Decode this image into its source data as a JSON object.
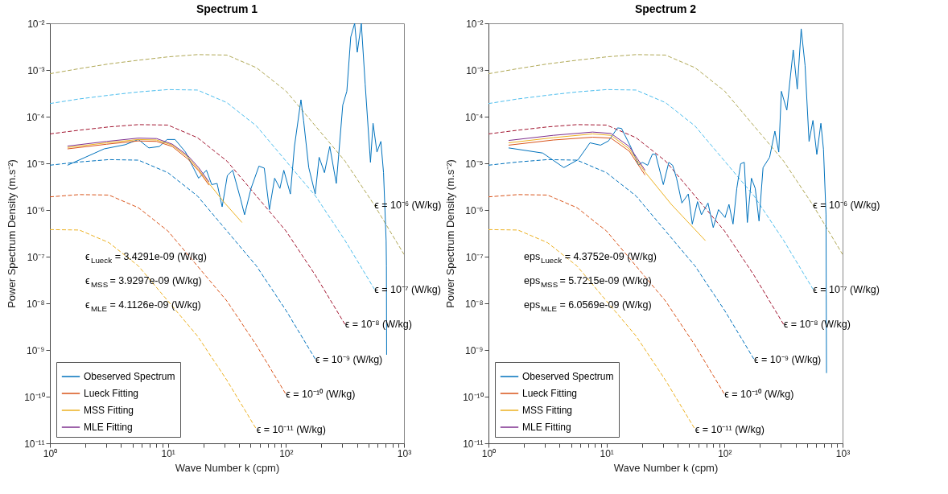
{
  "chart_data": [
    {
      "type": "line",
      "title": "Spectrum 1",
      "xlabel": "Wave Number k (cpm)",
      "ylabel": "Power Spectrum Density (m.s⁻²)",
      "xlim": [
        1,
        1000
      ],
      "ylim": [
        1e-11,
        0.01
      ],
      "log": "xy",
      "grid": false,
      "legend": "bottom left",
      "marker": "none",
      "xticks": [
        {
          "value": 1,
          "label": "10⁰"
        },
        {
          "value": 2,
          "label": null
        },
        {
          "value": 3,
          "label": null
        },
        {
          "value": 4,
          "label": null
        },
        {
          "value": 5,
          "label": null
        },
        {
          "value": 6,
          "label": null
        },
        {
          "value": 7,
          "label": null
        },
        {
          "value": 8,
          "label": null
        },
        {
          "value": 9,
          "label": null
        },
        {
          "value": 10,
          "label": "10¹"
        },
        {
          "value": 20,
          "label": null
        },
        {
          "value": 30,
          "label": null
        },
        {
          "value": 40,
          "label": null
        },
        {
          "value": 50,
          "label": null
        },
        {
          "value": 60,
          "label": null
        },
        {
          "value": 70,
          "label": null
        },
        {
          "value": 80,
          "label": null
        },
        {
          "value": 90,
          "label": null
        },
        {
          "value": 100,
          "label": "10²"
        },
        {
          "value": 200,
          "label": null
        },
        {
          "value": 300,
          "label": null
        },
        {
          "value": 400,
          "label": null
        },
        {
          "value": 500,
          "label": null
        },
        {
          "value": 600,
          "label": null
        },
        {
          "value": 700,
          "label": null
        },
        {
          "value": 800,
          "label": null
        },
        {
          "value": 900,
          "label": null
        },
        {
          "value": 1000,
          "label": "10³"
        }
      ],
      "yticks": [
        {
          "value": 1e-11,
          "label": "10⁻¹¹"
        },
        {
          "value": 1e-10,
          "label": "10⁻¹⁰"
        },
        {
          "value": 1e-09,
          "label": "10⁻⁹"
        },
        {
          "value": 1e-08,
          "label": "10⁻⁸"
        },
        {
          "value": 1e-07,
          "label": "10⁻⁷"
        },
        {
          "value": 1e-06,
          "label": "10⁻⁶"
        },
        {
          "value": 1e-05,
          "label": "10⁻⁵"
        },
        {
          "value": 0.0001,
          "label": "10⁻⁴"
        },
        {
          "value": 0.001,
          "label": "10⁻³"
        },
        {
          "value": 0.01,
          "label": "10⁻²"
        }
      ],
      "series": [
        {
          "color": "#b0a855",
          "line_style": "dashed",
          "x": [
            1,
            1.778,
            3.162,
            5.623,
            10,
            17.78,
            31.62,
            56.23,
            100,
            177.8,
            316.2,
            562.3,
            1000
          ],
          "values": [
            0.000832,
            0.00107,
            0.00135,
            0.00162,
            0.00191,
            0.00214,
            0.00209,
            0.00112,
            0.000355,
            6.31e-05,
            1.12e-05,
            1.26e-06,
            1.12e-07
          ]
        },
        {
          "color": "#4dbeee",
          "line_style": "dashed",
          "x": [
            1,
            1.778,
            3.162,
            5.623,
            10,
            17.78,
            31.62,
            56.23,
            100,
            177.8,
            316.2,
            562.3
          ],
          "values": [
            0.000191,
            0.00024,
            0.000288,
            0.000339,
            0.00038,
            0.000372,
            0.0002,
            6.31e-05,
            1.12e-05,
            2e-06,
            2.24e-07,
            2e-08
          ]
        },
        {
          "color": "#a2142f",
          "line_style": "dashed",
          "x": [
            1,
            1.778,
            3.162,
            5.623,
            10,
            17.78,
            31.62,
            56.23,
            100,
            177.8,
            316.2
          ],
          "values": [
            4.27e-05,
            5.13e-05,
            6.03e-05,
            6.76e-05,
            6.61e-05,
            3.55e-05,
            1.12e-05,
            2e-06,
            3.55e-07,
            3.98e-08,
            3.55e-09
          ]
        },
        {
          "color": "#0072bd",
          "line_style": "dashed",
          "x": [
            1,
            1.778,
            3.162,
            5.623,
            10,
            17.78,
            31.62,
            56.23,
            100,
            177.8
          ],
          "values": [
            9.12e-06,
            1.07e-05,
            1.2e-05,
            1.17e-05,
            6.31e-06,
            2e-06,
            3.55e-07,
            6.31e-08,
            7.08e-09,
            6.31e-10
          ]
        },
        {
          "color": "#d95319",
          "line_style": "dashed",
          "x": [
            1,
            1.778,
            3.162,
            5.623,
            10,
            17.78,
            31.62,
            56.23,
            100
          ],
          "values": [
            1.91e-06,
            2.14e-06,
            2.09e-06,
            1.12e-06,
            3.55e-07,
            6.31e-08,
            1.12e-08,
            1.26e-09,
            1.12e-10
          ]
        },
        {
          "color": "#edb120",
          "line_style": "dashed",
          "x": [
            1,
            1.778,
            3.162,
            5.623,
            10,
            17.78,
            31.62,
            56.23
          ],
          "values": [
            3.8e-07,
            3.72e-07,
            2e-07,
            6.31e-08,
            1.12e-08,
            2e-09,
            2.24e-10,
            2e-11
          ]
        },
        {
          "name": "Obeserved Spectrum",
          "color": "#0072bd",
          "line_style": "solid",
          "x": [
            1.41,
            2.88,
            4.35,
            5.61,
            6.89,
            8.45,
            9.84,
            11.5,
            14.1,
            16.4,
            18.2,
            21.2,
            23.5,
            26.1,
            28.8,
            31.9,
            35.4,
            41.3,
            44.6,
            50.6,
            59.0,
            65.5,
            72.4,
            80.2,
            88.9,
            95.9,
            109,
            118,
            134,
            141,
            156,
            177,
            191,
            212,
            235,
            267,
            281,
            303,
            328,
            354,
            382,
            402,
            435,
            469,
            520,
            547,
            590,
            637,
            671,
            706,
            710,
            713
          ],
          "values": [
            9.1e-06,
            2.04e-05,
            2.51e-05,
            3.24e-05,
            2.14e-05,
            2.29e-05,
            3.24e-05,
            3.24e-05,
            1.74e-05,
            8.1e-06,
            4.8e-06,
            7.1e-06,
            3.5e-06,
            3.7e-06,
            1.17e-06,
            5.5e-06,
            7.1e-06,
            1.7e-06,
            7.9e-07,
            2.9e-06,
            8.7e-06,
            7.9e-06,
            1.02e-06,
            4.8e-06,
            2.9e-06,
            7.1e-06,
            2.2e-06,
            2.3e-05,
            0.00023,
            8.3e-05,
            8.1e-06,
            2.2e-06,
            1.35e-05,
            6.3e-06,
            2.3e-05,
            3.7e-06,
            1.74e-05,
            0.000178,
            0.00035,
            0.0051,
            0.01,
            0.0024,
            0.01,
            0.0005,
            1.05e-05,
            7.2e-05,
            1.74e-05,
            2.95e-05,
            6.3e-06,
            2.2e-07,
            6.3e-08,
            7.9e-10
          ]
        },
        {
          "name": "Lueck Fitting",
          "color": "#d95319",
          "line_style": "solid",
          "x": [
            1.41,
            3.03,
            5.61,
            8.02,
            10.9,
            14.8,
            18.2,
            22.3
          ],
          "values": [
            2.04e-05,
            2.57e-05,
            3.02e-05,
            2.95e-05,
            2.29e-05,
            1.23e-05,
            6.9e-06,
            3.4e-06
          ]
        },
        {
          "name": "MSS Fitting",
          "color": "#edb120",
          "line_style": "solid",
          "x": [
            1.41,
            3.03,
            5.61,
            8.02,
            10.9,
            14.8,
            18.2,
            22.3,
            30.3,
            42.4
          ],
          "values": [
            2.19e-05,
            2.75e-05,
            3.24e-05,
            3.16e-05,
            2.45e-05,
            1.35e-05,
            7.4e-06,
            3.7e-06,
            1.41e-06,
            5.4e-07
          ]
        },
        {
          "name": "MLE Fitting",
          "color": "#7e2f8e",
          "line_style": "solid",
          "x": [
            1.41,
            3.03,
            5.61,
            8.02,
            10.9,
            14.8,
            18.2,
            22.3
          ],
          "values": [
            2.34e-05,
            2.95e-05,
            3.47e-05,
            3.39e-05,
            2.57e-05,
            1.45e-05,
            8.1e-06,
            4e-06
          ]
        }
      ],
      "annotations": [
        {
          "text": "ϵ = 10⁻⁶ (W/kg)",
          "x": 562.3,
          "y": 1.26e-06
        },
        {
          "text": "ϵ = 10⁻⁷ (W/kg)",
          "x": 562.3,
          "y": 2e-08
        },
        {
          "text": "ϵ = 10⁻⁸ (W/kg)",
          "x": 316.2,
          "y": 3.55e-09
        },
        {
          "text": "ϵ = 10⁻⁹ (W/kg)",
          "x": 177.8,
          "y": 6.31e-10
        },
        {
          "text": "ϵ = 10⁻¹⁰ (W/kg)",
          "x": 100,
          "y": 1.12e-10
        },
        {
          "text": "ϵ = 10⁻¹¹ (W/kg)",
          "x": 56.23,
          "y": 2e-11
        },
        "ϵ$_{Lueck}$ = 3.4291e-09 (W/kg)",
        "ϵ$_{MSS}$ = 3.9297e-09 (W/kg)",
        "ϵ$_{MLE}$ = 4.1126e-09 (W/kg)"
      ]
    },
    {
      "type": "line",
      "title": "Spectrum 2",
      "xlabel": "Wave Number k (cpm)",
      "ylabel": "Power Spectrum Density (m.s⁻²)",
      "xlim": [
        1,
        1000
      ],
      "ylim": [
        1e-11,
        0.01
      ],
      "log": "xy",
      "grid": false,
      "legend": "bottom left",
      "marker": "none",
      "xticks": [
        {
          "value": 1,
          "label": "10⁰"
        },
        {
          "value": 2,
          "label": null
        },
        {
          "value": 3,
          "label": null
        },
        {
          "value": 4,
          "label": null
        },
        {
          "value": 5,
          "label": null
        },
        {
          "value": 6,
          "label": null
        },
        {
          "value": 7,
          "label": null
        },
        {
          "value": 8,
          "label": null
        },
        {
          "value": 9,
          "label": null
        },
        {
          "value": 10,
          "label": "10¹"
        },
        {
          "value": 20,
          "label": null
        },
        {
          "value": 30,
          "label": null
        },
        {
          "value": 40,
          "label": null
        },
        {
          "value": 50,
          "label": null
        },
        {
          "value": 60,
          "label": null
        },
        {
          "value": 70,
          "label": null
        },
        {
          "value": 80,
          "label": null
        },
        {
          "value": 90,
          "label": null
        },
        {
          "value": 100,
          "label": "10²"
        },
        {
          "value": 200,
          "label": null
        },
        {
          "value": 300,
          "label": null
        },
        {
          "value": 400,
          "label": null
        },
        {
          "value": 500,
          "label": null
        },
        {
          "value": 600,
          "label": null
        },
        {
          "value": 700,
          "label": null
        },
        {
          "value": 800,
          "label": null
        },
        {
          "value": 900,
          "label": null
        },
        {
          "value": 1000,
          "label": "10³"
        }
      ],
      "yticks": [
        {
          "value": 1e-11,
          "label": "10⁻¹¹"
        },
        {
          "value": 1e-10,
          "label": "10⁻¹⁰"
        },
        {
          "value": 1e-09,
          "label": "10⁻⁹"
        },
        {
          "value": 1e-08,
          "label": "10⁻⁸"
        },
        {
          "value": 1e-07,
          "label": "10⁻⁷"
        },
        {
          "value": 1e-06,
          "label": "10⁻⁶"
        },
        {
          "value": 1e-05,
          "label": "10⁻⁵"
        },
        {
          "value": 0.0001,
          "label": "10⁻⁴"
        },
        {
          "value": 0.001,
          "label": "10⁻³"
        },
        {
          "value": 0.01,
          "label": "10⁻²"
        }
      ],
      "series": [
        {
          "color": "#b0a855",
          "line_style": "dashed",
          "x": [
            1,
            1.778,
            3.162,
            5.623,
            10,
            17.78,
            31.62,
            56.23,
            100,
            177.8,
            316.2,
            562.3,
            1000
          ],
          "values": [
            0.000832,
            0.00107,
            0.00135,
            0.00162,
            0.00191,
            0.00214,
            0.00209,
            0.00112,
            0.000355,
            6.31e-05,
            1.12e-05,
            1.26e-06,
            1.12e-07
          ]
        },
        {
          "color": "#4dbeee",
          "line_style": "dashed",
          "x": [
            1,
            1.778,
            3.162,
            5.623,
            10,
            17.78,
            31.62,
            56.23,
            100,
            177.8,
            316.2,
            562.3
          ],
          "values": [
            0.000191,
            0.00024,
            0.000288,
            0.000339,
            0.00038,
            0.000372,
            0.0002,
            6.31e-05,
            1.12e-05,
            2e-06,
            2.24e-07,
            2e-08
          ]
        },
        {
          "color": "#a2142f",
          "line_style": "dashed",
          "x": [
            1,
            1.778,
            3.162,
            5.623,
            10,
            17.78,
            31.62,
            56.23,
            100,
            177.8,
            316.2
          ],
          "values": [
            4.27e-05,
            5.13e-05,
            6.03e-05,
            6.76e-05,
            6.61e-05,
            3.55e-05,
            1.12e-05,
            2e-06,
            3.55e-07,
            3.98e-08,
            3.55e-09
          ]
        },
        {
          "color": "#0072bd",
          "line_style": "dashed",
          "x": [
            1,
            1.778,
            3.162,
            5.623,
            10,
            17.78,
            31.62,
            56.23,
            100,
            177.8
          ],
          "values": [
            9.12e-06,
            1.07e-05,
            1.2e-05,
            1.17e-05,
            6.31e-06,
            2e-06,
            3.55e-07,
            6.31e-08,
            7.08e-09,
            6.31e-10
          ]
        },
        {
          "color": "#d95319",
          "line_style": "dashed",
          "x": [
            1,
            1.778,
            3.162,
            5.623,
            10,
            17.78,
            31.62,
            56.23,
            100
          ],
          "values": [
            1.91e-06,
            2.14e-06,
            2.09e-06,
            1.12e-06,
            3.55e-07,
            6.31e-08,
            1.12e-08,
            1.26e-09,
            1.12e-10
          ]
        },
        {
          "color": "#edb120",
          "line_style": "dashed",
          "x": [
            1,
            1.778,
            3.162,
            5.623,
            10,
            17.78,
            31.62,
            56.23
          ],
          "values": [
            3.8e-07,
            3.72e-07,
            2e-07,
            6.31e-08,
            1.12e-08,
            2e-09,
            2.24e-10,
            2e-11
          ]
        },
        {
          "name": "Obeserved Spectrum",
          "color": "#0072bd",
          "line_style": "solid",
          "x": [
            1.48,
            2.88,
            4.35,
            5.75,
            7.24,
            8.89,
            10.4,
            12.4,
            13.4,
            16.0,
            18.7,
            20.1,
            22.3,
            24.5,
            26.1,
            30.3,
            33.7,
            36.3,
            39.2,
            43.5,
            49.3,
            53.3,
            59.0,
            63.7,
            72.4,
            80.2,
            88.9,
            101,
            109,
            118,
            127,
            137,
            147,
            156,
            169,
            182,
            196,
            212,
            241,
            267,
            288,
            303,
            337,
            382,
            413,
            446,
            481,
            520,
            561,
            605,
            655,
            689,
            724,
            727,
            731
          ],
          "values": [
            2.14e-05,
            1.66e-05,
            8.1e-06,
            1.2e-05,
            2.75e-05,
            2.45e-05,
            3.02e-05,
            5.75e-05,
            5.6e-05,
            2.29e-05,
            9.1e-06,
            1.05e-05,
            9.1e-06,
            1.58e-05,
            1.55e-05,
            3.5e-06,
            1.05e-05,
            9.1e-06,
            4.8e-06,
            1.41e-06,
            2.2e-06,
            5e-07,
            1.51e-06,
            7.9e-07,
            1.41e-06,
            4.2e-07,
            1.02e-06,
            6.9e-07,
            1.32e-06,
            5e-07,
            2.9e-06,
            9.8e-06,
            1.05e-05,
            5.4e-07,
            4.8e-06,
            2.9e-06,
            5.8e-07,
            8.1e-06,
            1.35e-05,
            4.9e-05,
            1.74e-05,
            0.00035,
            0.000138,
            0.0027,
            0.00039,
            0.0076,
            0.00126,
            2.95e-05,
            8.3e-05,
            1.55e-05,
            7.2e-05,
            2e-05,
            7.9e-07,
            1.6e-08,
            3.2e-10
          ]
        },
        {
          "name": "Lueck Fitting",
          "color": "#d95319",
          "line_style": "solid",
          "x": [
            1.48,
            3.54,
            7.62,
            10.9,
            15.6,
            21.2
          ],
          "values": [
            2.45e-05,
            3.16e-05,
            3.63e-05,
            3.47e-05,
            1.82e-05,
            5.6e-06
          ]
        },
        {
          "name": "MSS Fitting",
          "color": "#edb120",
          "line_style": "solid",
          "x": [
            1.48,
            3.54,
            7.62,
            10.9,
            15.6,
            21.2,
            35.4,
            68.9
          ],
          "values": [
            2.75e-05,
            3.55e-05,
            4.27e-05,
            3.98e-05,
            2.04e-05,
            6.5e-06,
            1.32e-06,
            2.2e-07
          ]
        },
        {
          "name": "MLE Fitting",
          "color": "#7e2f8e",
          "line_style": "solid",
          "x": [
            1.48,
            3.54,
            7.62,
            10.9,
            15.6,
            21.2
          ],
          "values": [
            3.09e-05,
            3.98e-05,
            4.68e-05,
            4.37e-05,
            2.29e-05,
            7.1e-06
          ]
        }
      ],
      "annotations": [
        {
          "text": "ϵ = 10⁻⁶ (W/kg)",
          "x": 562.3,
          "y": 1.26e-06
        },
        {
          "text": "ϵ = 10⁻⁷ (W/kg)",
          "x": 562.3,
          "y": 2e-08
        },
        {
          "text": "ϵ = 10⁻⁸ (W/kg)",
          "x": 316.2,
          "y": 3.55e-09
        },
        {
          "text": "ϵ = 10⁻⁹ (W/kg)",
          "x": 177.8,
          "y": 6.31e-10
        },
        {
          "text": "ϵ = 10⁻¹⁰ (W/kg)",
          "x": 100,
          "y": 1.12e-10
        },
        {
          "text": "ϵ = 10⁻¹¹ (W/kg)",
          "x": 56.23,
          "y": 2e-11
        },
        "eps$_{Lueck}$ = 4.3752e-09 (W/kg)",
        "eps$_{MSS}$ = 5.7215e-09 (W/kg)",
        "eps$_{MLE}$ = 6.0569e-09 (W/kg)"
      ]
    }
  ]
}
